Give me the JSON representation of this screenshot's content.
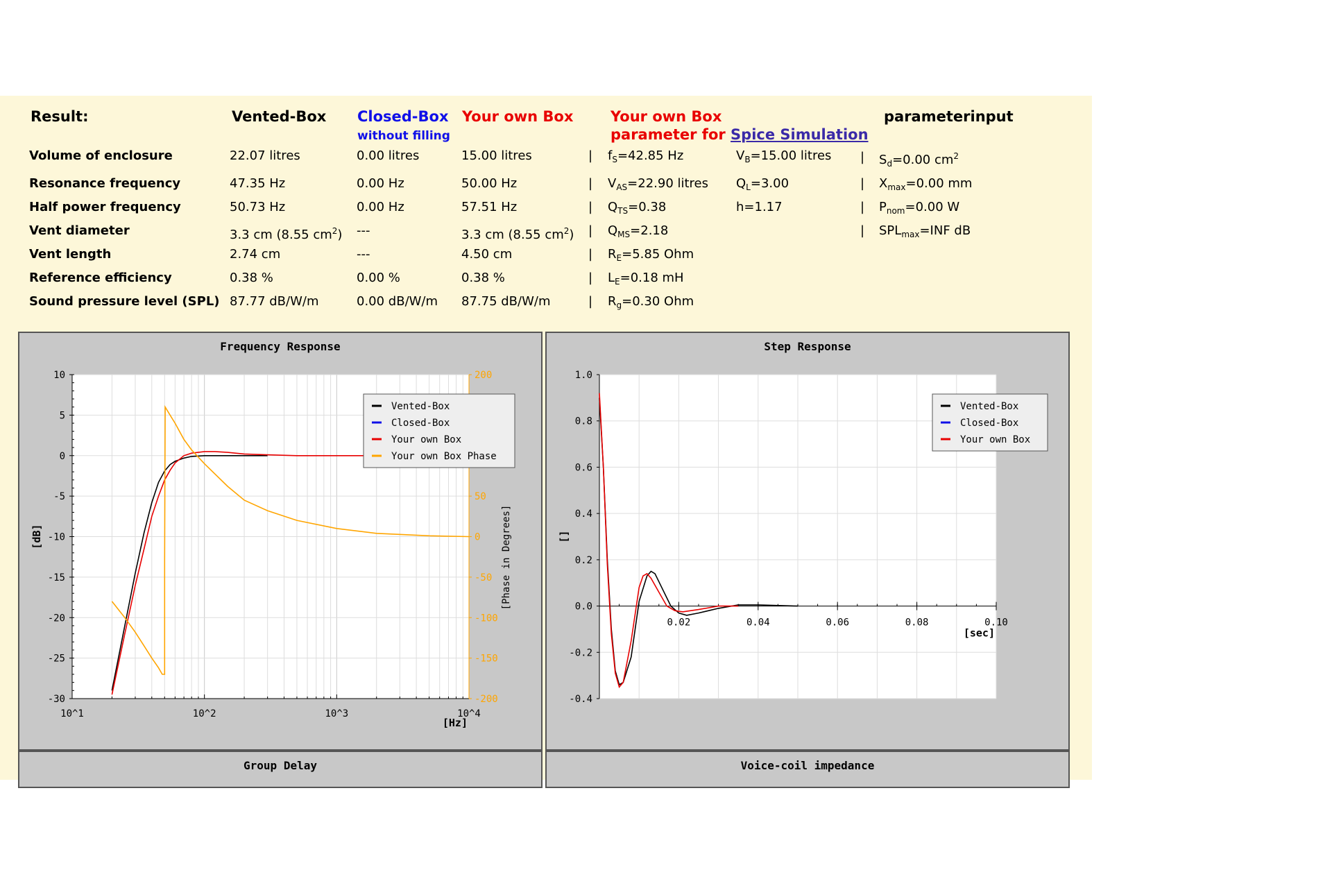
{
  "headers": {
    "result": "Result:",
    "vented": "Vented-Box",
    "closed": "Closed-Box",
    "closed_sub": "without filling",
    "own": "Your own Box",
    "spice_l1": "Your own Box",
    "spice_l2_prefix": "parameter for ",
    "spice_link": "Spice Simulation",
    "paraminput": "parameterinput"
  },
  "rows": [
    {
      "label": "Volume of enclosure",
      "vented": "22.07 litres",
      "closed": "0.00 litres",
      "own": "15.00 litres"
    },
    {
      "label": "Resonance frequency",
      "vented": "47.35 Hz",
      "closed": "0.00 Hz",
      "own": "50.00 Hz"
    },
    {
      "label": "Half power frequency",
      "vented": "50.73 Hz",
      "closed": "0.00 Hz",
      "own": "57.51 Hz"
    },
    {
      "label": "Vent diameter",
      "vented": "3.3 cm (8.55 cm",
      "closed": "---",
      "own": "3.3 cm (8.55 cm"
    },
    {
      "label": "Vent length",
      "vented": "2.74 cm",
      "closed": "---",
      "own": "4.50 cm"
    },
    {
      "label": "Reference efficiency",
      "vented": "0.38 %",
      "closed": "0.00 %",
      "own": "0.38 %"
    },
    {
      "label": "Sound pressure level (SPL)",
      "vented": "87.77 dB/W/m",
      "closed": "0.00 dB/W/m",
      "own": "87.75 dB/W/m"
    }
  ],
  "vent_suffix": {
    "sup": "2",
    "close": ")"
  },
  "sep": "|",
  "spice": {
    "fs": {
      "sym": "f",
      "sub": "S",
      "val": "=42.85 Hz"
    },
    "vb": {
      "sym": "V",
      "sub": "B",
      "val": "=15.00 litres"
    },
    "vas": {
      "sym": "V",
      "sub": "AS",
      "val": "=22.90 litres"
    },
    "ql": {
      "sym": "Q",
      "sub": "L",
      "val": "=3.00"
    },
    "qts": {
      "sym": "Q",
      "sub": "TS",
      "val": "=0.38"
    },
    "h": {
      "text": "h=1.17"
    },
    "qms": {
      "sym": "Q",
      "sub": "MS",
      "val": "=2.18"
    },
    "re": {
      "sym": "R",
      "sub": "E",
      "val": "=5.85 Ohm"
    },
    "le": {
      "sym": "L",
      "sub": "E",
      "val": "=0.18 mH"
    },
    "rg": {
      "sym": "R",
      "sub": "g",
      "val": "=0.30 Ohm"
    }
  },
  "param": {
    "sd": {
      "sym": "S",
      "sub": "d",
      "val": "=0.00 cm",
      "sup": "2"
    },
    "xmax": {
      "sym": "X",
      "sub": "max",
      "val": "=0.00 mm"
    },
    "pnom": {
      "sym": "P",
      "sub": "nom",
      "val": "=0.00 W"
    },
    "splmax": {
      "sym": "SPL",
      "sub": "max",
      "val": "=INF dB"
    }
  },
  "colors": {
    "vented": "#000000",
    "closed": "#1010e8",
    "own": "#e80000",
    "phase": "#ffa500",
    "panel": "#fdf7d9",
    "chart_bg": "#c8c8c8"
  },
  "chart_data": [
    {
      "type": "line",
      "title": "Frequency Response",
      "xlabel": "[Hz]",
      "ylabel": "[dB]",
      "y2label": "[Phase in Degrees]",
      "xscale": "log",
      "xlim": [
        10,
        10000
      ],
      "ylim": [
        -30,
        10
      ],
      "y2lim": [
        -200,
        200
      ],
      "xtick_labels": [
        "10^1",
        "10^2",
        "10^3",
        "10^4"
      ],
      "yticks": [
        10,
        5,
        0,
        -5,
        -10,
        -15,
        -20,
        -25,
        -30
      ],
      "y2ticks": [
        200,
        50,
        0,
        -50,
        -100,
        -150,
        -200
      ],
      "grid": true,
      "legend_position": "top-right",
      "series": [
        {
          "name": "Vented-Box",
          "axis": "left",
          "points": [
            [
              20,
              -29
            ],
            [
              25,
              -21
            ],
            [
              30,
              -14.5
            ],
            [
              35,
              -9.5
            ],
            [
              40,
              -5.8
            ],
            [
              45,
              -3.3
            ],
            [
              50,
              -1.9
            ],
            [
              55,
              -1.1
            ],
            [
              60,
              -0.7
            ],
            [
              70,
              -0.3
            ],
            [
              80,
              -0.1
            ],
            [
              100,
              0
            ],
            [
              300,
              0
            ]
          ]
        },
        {
          "name": "Closed-Box",
          "axis": "left",
          "points": []
        },
        {
          "name": "Your own Box",
          "axis": "left",
          "points": [
            [
              20,
              -29.5
            ],
            [
              25,
              -22
            ],
            [
              30,
              -16
            ],
            [
              35,
              -11.5
            ],
            [
              40,
              -7.5
            ],
            [
              45,
              -5
            ],
            [
              50,
              -3
            ],
            [
              55,
              -1.8
            ],
            [
              60,
              -0.9
            ],
            [
              70,
              0
            ],
            [
              80,
              0.3
            ],
            [
              100,
              0.5
            ],
            [
              120,
              0.5
            ],
            [
              150,
              0.4
            ],
            [
              200,
              0.2
            ],
            [
              300,
              0.1
            ],
            [
              500,
              0
            ],
            [
              10000,
              0
            ]
          ]
        },
        {
          "name": "Your own Box Phase",
          "axis": "right",
          "points": [
            [
              20,
              -80
            ],
            [
              25,
              -100
            ],
            [
              30,
              -118
            ],
            [
              35,
              -135
            ],
            [
              40,
              -150
            ],
            [
              45,
              -162
            ],
            [
              48,
              -170
            ],
            [
              50,
              -170
            ],
            [
              50,
              -30
            ],
            [
              50.5,
              160
            ],
            [
              55,
              150
            ],
            [
              60,
              140
            ],
            [
              70,
              120
            ],
            [
              80,
              107
            ],
            [
              100,
              90
            ],
            [
              150,
              62
            ],
            [
              200,
              45
            ],
            [
              300,
              32
            ],
            [
              500,
              20
            ],
            [
              1000,
              10
            ],
            [
              2000,
              4
            ],
            [
              5000,
              1
            ],
            [
              10000,
              0
            ]
          ]
        }
      ]
    },
    {
      "type": "line",
      "title": "Step Response",
      "xlabel": "[sec]",
      "ylabel": "[]",
      "xlim": [
        0,
        0.1
      ],
      "ylim": [
        -0.4,
        1.0
      ],
      "xtick_labels": [
        "0.02",
        "0.04",
        "0.06",
        "0.08",
        "0.10"
      ],
      "yticks": [
        "1.0",
        "0.8",
        "0.6",
        "0.4",
        "0.2",
        "0.0",
        "-0.2",
        "-0.4"
      ],
      "grid": true,
      "legend_position": "top-right",
      "series": [
        {
          "name": "Vented-Box",
          "points": [
            [
              0,
              0.9
            ],
            [
              0.001,
              0.6
            ],
            [
              0.002,
              0.2
            ],
            [
              0.003,
              -0.1
            ],
            [
              0.004,
              -0.28
            ],
            [
              0.005,
              -0.34
            ],
            [
              0.006,
              -0.33
            ],
            [
              0.008,
              -0.22
            ],
            [
              0.01,
              0.02
            ],
            [
              0.012,
              0.13
            ],
            [
              0.013,
              0.15
            ],
            [
              0.014,
              0.14
            ],
            [
              0.016,
              0.07
            ],
            [
              0.018,
              0.0
            ],
            [
              0.02,
              -0.03
            ],
            [
              0.022,
              -0.04
            ],
            [
              0.025,
              -0.03
            ],
            [
              0.03,
              -0.01
            ],
            [
              0.035,
              0.005
            ],
            [
              0.04,
              0.005
            ],
            [
              0.05,
              0
            ]
          ]
        },
        {
          "name": "Closed-Box",
          "points": []
        },
        {
          "name": "Your own Box",
          "points": [
            [
              0,
              0.92
            ],
            [
              0.001,
              0.6
            ],
            [
              0.002,
              0.18
            ],
            [
              0.003,
              -0.12
            ],
            [
              0.004,
              -0.29
            ],
            [
              0.005,
              -0.35
            ],
            [
              0.006,
              -0.33
            ],
            [
              0.008,
              -0.15
            ],
            [
              0.01,
              0.08
            ],
            [
              0.011,
              0.13
            ],
            [
              0.012,
              0.14
            ],
            [
              0.013,
              0.12
            ],
            [
              0.015,
              0.06
            ],
            [
              0.017,
              0.0
            ],
            [
              0.019,
              -0.02
            ],
            [
              0.021,
              -0.025
            ],
            [
              0.025,
              -0.015
            ],
            [
              0.03,
              0.0
            ],
            [
              0.035,
              0.0
            ]
          ]
        }
      ]
    }
  ],
  "group_delay_title": "Group Delay",
  "impedance_title": "Voice-coil impedance"
}
